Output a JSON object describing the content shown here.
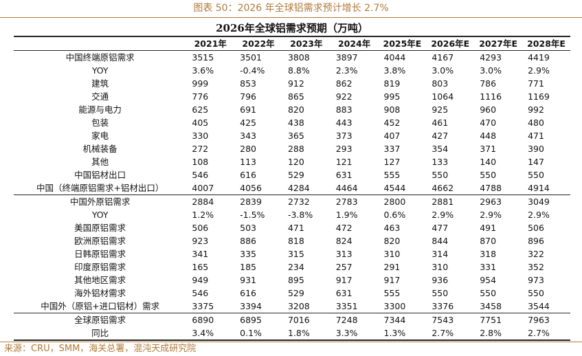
{
  "caption": "图表 50：2026 年全球铝需求预计增长 2.7%",
  "table": {
    "title": "2026年全球铝需求预期（万吨）",
    "header": [
      "",
      "2021年",
      "2022年",
      "2023年",
      "2024年",
      "2025年E",
      "2026年E",
      "2027年E",
      "2028年E"
    ],
    "rows": [
      [
        "中国终端原铝需求",
        "3515",
        "3501",
        "3808",
        "3897",
        "4044",
        "4167",
        "4293",
        "4419"
      ],
      [
        "YOY",
        "3.6%",
        "-0.4%",
        "8.8%",
        "2.3%",
        "3.8%",
        "3.0%",
        "3.0%",
        "2.9%"
      ],
      [
        "建筑",
        "999",
        "853",
        "912",
        "862",
        "819",
        "803",
        "786",
        "771"
      ],
      [
        "交通",
        "776",
        "796",
        "865",
        "922",
        "995",
        "1064",
        "1116",
        "1169"
      ],
      [
        "能源与电力",
        "625",
        "691",
        "820",
        "883",
        "908",
        "925",
        "960",
        "992"
      ],
      [
        "包装",
        "405",
        "425",
        "438",
        "443",
        "452",
        "461",
        "470",
        "480"
      ],
      [
        "家电",
        "330",
        "343",
        "365",
        "373",
        "407",
        "427",
        "448",
        "471"
      ],
      [
        "机械装备",
        "272",
        "280",
        "288",
        "293",
        "337",
        "354",
        "371",
        "390"
      ],
      [
        "其他",
        "108",
        "113",
        "120",
        "121",
        "127",
        "133",
        "140",
        "147"
      ],
      [
        "中国铝材出口",
        "546",
        "616",
        "529",
        "631",
        "555",
        "550",
        "550",
        "550"
      ],
      [
        "中国（终端原铝需求+铝材出口）",
        "4007",
        "4056",
        "4284",
        "4464",
        "4544",
        "4662",
        "4788",
        "4914"
      ],
      [
        "中国外原铝需求",
        "2884",
        "2839",
        "2732",
        "2783",
        "2800",
        "2881",
        "2963",
        "3049"
      ],
      [
        "YOY",
        "1.2%",
        "-1.5%",
        "-3.8%",
        "1.9%",
        "0.6%",
        "2.9%",
        "2.9%",
        "2.9%"
      ],
      [
        "美国原铝需求",
        "506",
        "503",
        "471",
        "472",
        "463",
        "477",
        "491",
        "506"
      ],
      [
        "欧洲原铝需求",
        "923",
        "886",
        "818",
        "824",
        "820",
        "844",
        "870",
        "896"
      ],
      [
        "日韩原铝需求",
        "341",
        "335",
        "315",
        "313",
        "310",
        "314",
        "318",
        "322"
      ],
      [
        "印度原铝需求",
        "165",
        "185",
        "234",
        "257",
        "291",
        "310",
        "331",
        "352"
      ],
      [
        "其他地区需求",
        "949",
        "931",
        "895",
        "917",
        "917",
        "936",
        "954",
        "973"
      ],
      [
        "海外铝材需求",
        "546",
        "616",
        "529",
        "631",
        "555",
        "550",
        "550",
        "550"
      ],
      [
        "中国外（原铝+进口铝材）需求",
        "3375",
        "3394",
        "3208",
        "3351",
        "3300",
        "3376",
        "3458",
        "3544"
      ],
      [
        "全球原铝需求",
        "6890",
        "6895",
        "7016",
        "7248",
        "7344",
        "7543",
        "7751",
        "7963"
      ],
      [
        "同比",
        "3.4%",
        "0.1%",
        "1.8%",
        "3.3%",
        "1.3%",
        "2.7%",
        "2.8%",
        "2.7%"
      ]
    ]
  },
  "source": "来源：CRU，SMM，海关总署，混沌天成研究院"
}
